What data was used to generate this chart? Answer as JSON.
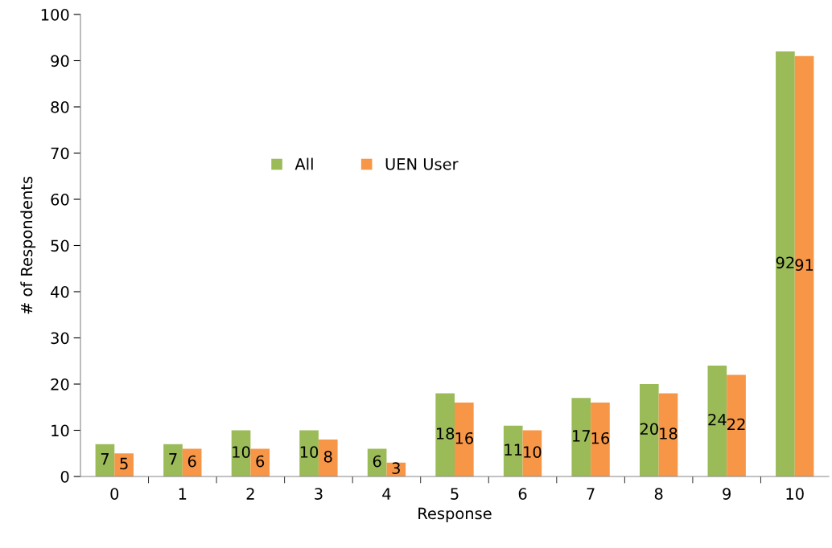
{
  "chart_data": {
    "type": "bar",
    "xlabel": "Response",
    "ylabel": "# of Respondents",
    "categories": [
      "0",
      "1",
      "2",
      "3",
      "4",
      "5",
      "6",
      "7",
      "8",
      "9",
      "10"
    ],
    "series": [
      {
        "name": "All",
        "color": "#9bbb59",
        "values": [
          7,
          7,
          10,
          10,
          6,
          18,
          11,
          17,
          20,
          24,
          92
        ]
      },
      {
        "name": "UEN User",
        "color": "#f79646",
        "values": [
          5,
          6,
          6,
          8,
          3,
          16,
          10,
          16,
          18,
          22,
          91
        ]
      }
    ],
    "ylim": [
      0,
      100
    ],
    "yticks": [
      0,
      10,
      20,
      30,
      40,
      50,
      60,
      70,
      80,
      90,
      100
    ],
    "grid": false,
    "legend": "top",
    "data_labels": true
  }
}
